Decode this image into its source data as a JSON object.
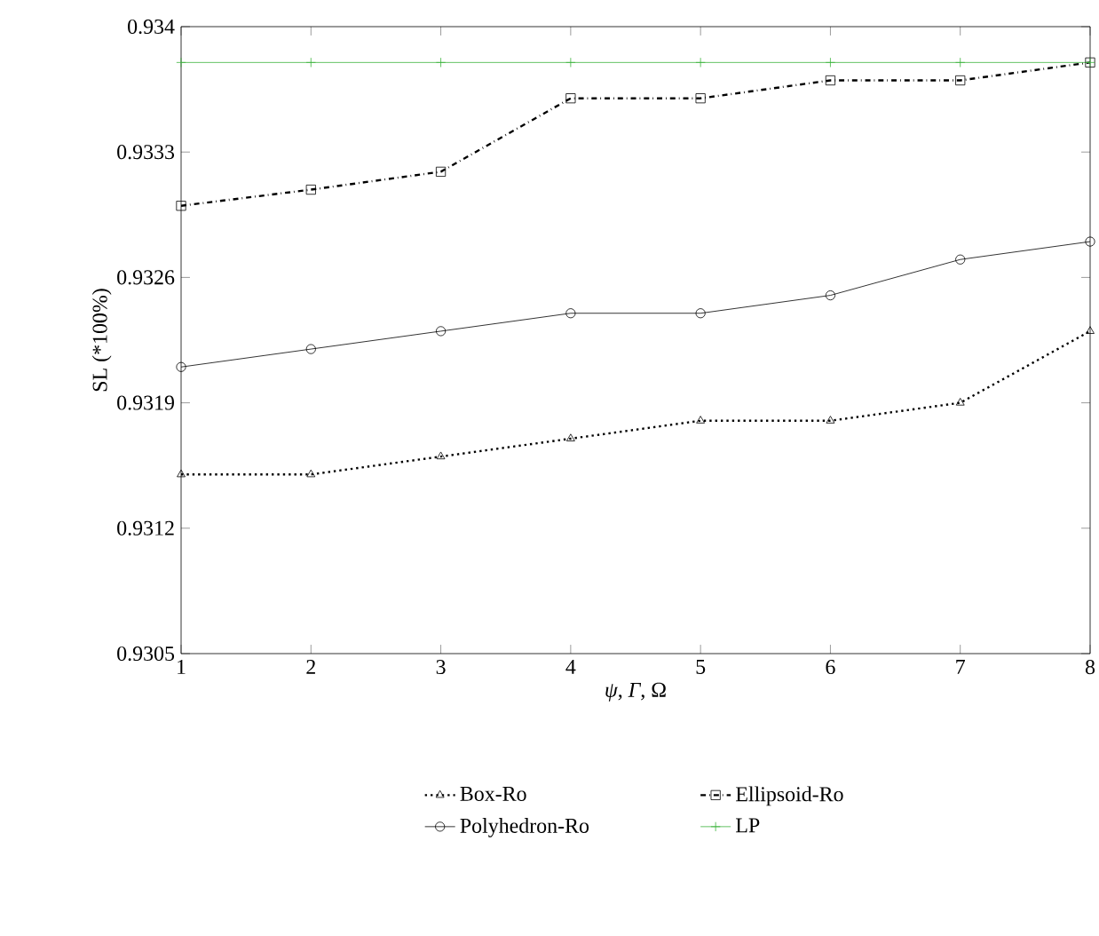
{
  "chart_data": {
    "type": "line",
    "xlabel": "*ψ*, *Γ*, Ω",
    "ylabel": "SL (*100%)",
    "x": [
      1,
      2,
      3,
      4,
      5,
      6,
      7,
      8
    ],
    "series": [
      {
        "name": "Box-Ro",
        "color": "#000000",
        "marker": "triangle",
        "line_style": "dotted",
        "values": [
          0.9315,
          0.9315,
          0.9316,
          0.9317,
          0.9318,
          0.9318,
          0.9319,
          0.9323
        ]
      },
      {
        "name": "Ellipsoid-Ro",
        "color": "#000000",
        "marker": "square",
        "line_style": "dashed",
        "values": [
          0.933,
          0.93309,
          0.93319,
          0.9336,
          0.9336,
          0.9337,
          0.9337,
          0.9338
        ]
      },
      {
        "name": "Polyhedron-Ro",
        "color": "#000000",
        "marker": "circle",
        "line_style": "solid",
        "values": [
          0.9321,
          0.9322,
          0.9323,
          0.9324,
          0.9324,
          0.9325,
          0.9327,
          0.9328
        ]
      },
      {
        "name": "LP",
        "color": "#3cb43c",
        "marker": "cross",
        "line_style": "solid",
        "values": [
          0.9338,
          0.9338,
          0.9338,
          0.9338,
          0.9338,
          0.9338,
          0.9338,
          0.9338
        ]
      }
    ],
    "xlim": [
      1,
      8
    ],
    "xticks": [
      1,
      2,
      3,
      4,
      5,
      6,
      7,
      8
    ],
    "ylim": [
      0.9305,
      0.934
    ],
    "yticks": [
      0.9305,
      0.9312,
      0.9319,
      0.9326,
      0.9333,
      0.934
    ],
    "grid": false,
    "legend": "bottom"
  }
}
